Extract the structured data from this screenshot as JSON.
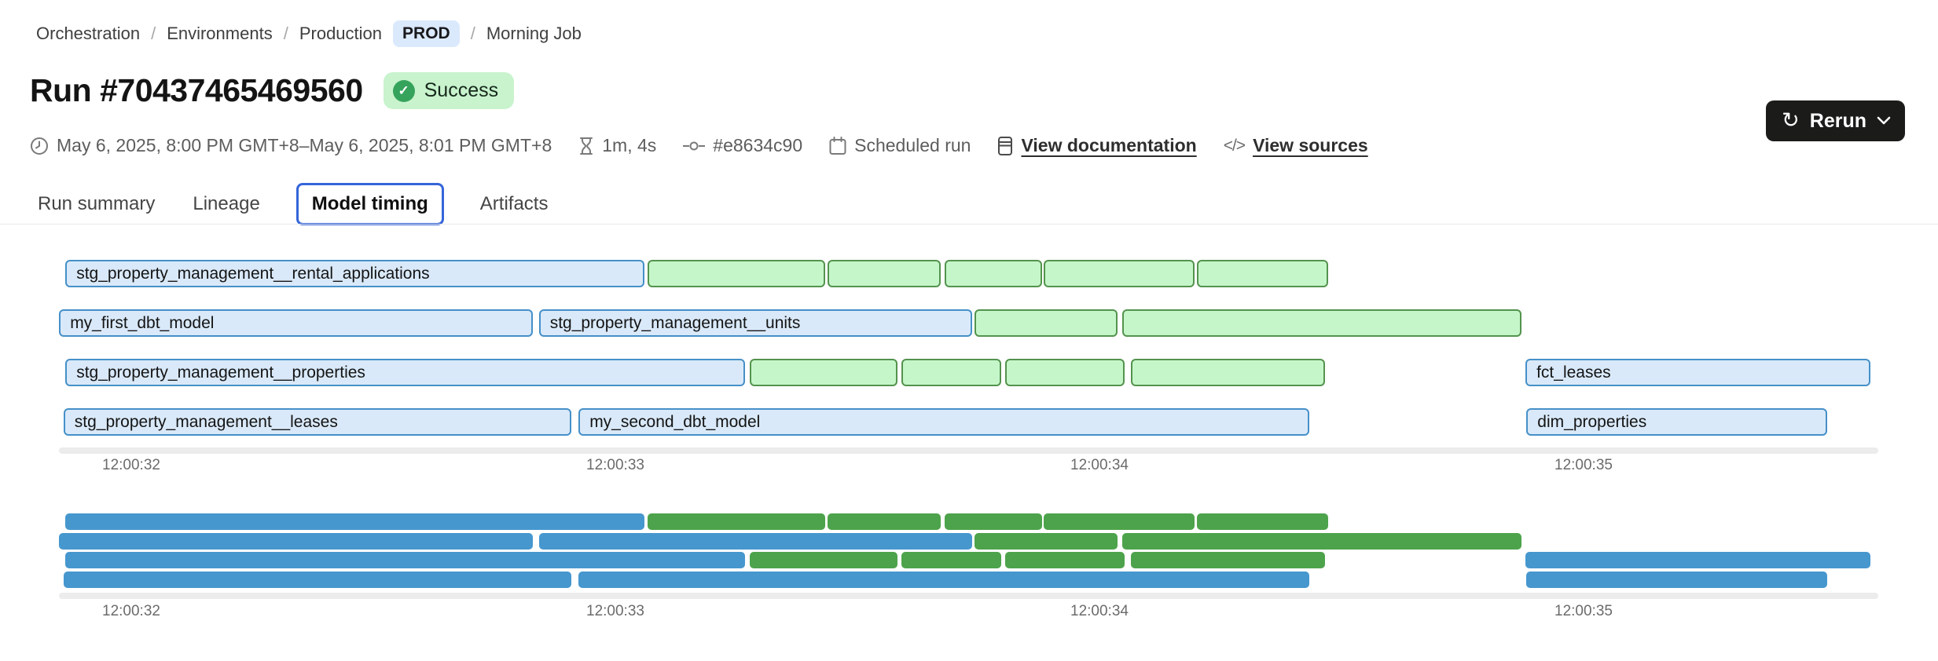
{
  "breadcrumb": {
    "separator": "/",
    "items": [
      {
        "label": "Orchestration"
      },
      {
        "label": "Environments"
      },
      {
        "label": "Production"
      }
    ],
    "env_badge": "PROD",
    "current": "Morning Job"
  },
  "header": {
    "title": "Run #70437465469560",
    "status": "Success",
    "rerun_label": "Rerun"
  },
  "meta": {
    "time_range": "May 6, 2025, 8:00 PM GMT+8–May 6, 2025, 8:01 PM GMT+8",
    "duration": "1m, 4s",
    "commit": "#e8634c90",
    "trigger": "Scheduled run",
    "documentation_link": "View documentation",
    "sources_link": "View sources",
    "code_glyph": "</>"
  },
  "tabs": [
    {
      "label": "Run summary",
      "active": false
    },
    {
      "label": "Lineage",
      "active": false
    },
    {
      "label": "Model timing",
      "active": true
    },
    {
      "label": "Artifacts",
      "active": false
    }
  ],
  "colors": {
    "model_fill": "#d9e9f9",
    "model_border": "#4690c8",
    "test_fill": "#c5f6c9",
    "test_border": "#54934e",
    "mini_model": "#4697ce",
    "mini_test": "#4da34b",
    "accent_blue": "#3565d9",
    "success_bg": "#c8f3cd",
    "success_dot": "#36a35c",
    "prod_badge_bg": "#dbe9fd",
    "rerun_bg": "#1b1b1a"
  },
  "chart_data": {
    "type": "gantt",
    "title": "Model timing",
    "x_ticks": [
      "12:00:32",
      "12:00:33",
      "12:00:34",
      "12:00:35"
    ],
    "x_tick_seconds": [
      32,
      33,
      34,
      35
    ],
    "rows": [
      [
        {
          "label": "stg_property_management__rental_applications",
          "kind": "model",
          "start": 31.864,
          "end": 33.06
        },
        {
          "label": "",
          "kind": "test",
          "start": 33.067,
          "end": 33.434
        },
        {
          "label": "",
          "kind": "test",
          "start": 33.438,
          "end": 33.672
        },
        {
          "label": "",
          "kind": "test",
          "start": 33.68,
          "end": 33.881
        },
        {
          "label": "",
          "kind": "test",
          "start": 33.885,
          "end": 34.196
        },
        {
          "label": "",
          "kind": "test",
          "start": 34.201,
          "end": 34.472
        }
      ],
      [
        {
          "label": "my_first_dbt_model",
          "kind": "model",
          "start": 31.851,
          "end": 32.829
        },
        {
          "label": "stg_property_management__units",
          "kind": "model",
          "start": 32.842,
          "end": 33.737
        },
        {
          "label": "",
          "kind": "test",
          "start": 33.742,
          "end": 34.037
        },
        {
          "label": "",
          "kind": "test",
          "start": 34.047,
          "end": 34.872
        }
      ],
      [
        {
          "label": "stg_property_management__properties",
          "kind": "model",
          "start": 31.864,
          "end": 33.268
        },
        {
          "label": "",
          "kind": "test",
          "start": 33.278,
          "end": 33.583
        },
        {
          "label": "",
          "kind": "test",
          "start": 33.591,
          "end": 33.797
        },
        {
          "label": "",
          "kind": "test",
          "start": 33.805,
          "end": 34.052
        },
        {
          "label": "",
          "kind": "test",
          "start": 34.065,
          "end": 34.466
        },
        {
          "label": "fct_leases",
          "kind": "model",
          "start": 34.88,
          "end": 35.593
        }
      ],
      [
        {
          "label": "stg_property_management__leases",
          "kind": "model",
          "start": 31.86,
          "end": 32.909
        },
        {
          "label": "my_second_dbt_model",
          "kind": "model",
          "start": 32.924,
          "end": 34.433
        },
        {
          "label": "dim_properties",
          "kind": "model",
          "start": 34.882,
          "end": 35.503
        }
      ]
    ]
  }
}
